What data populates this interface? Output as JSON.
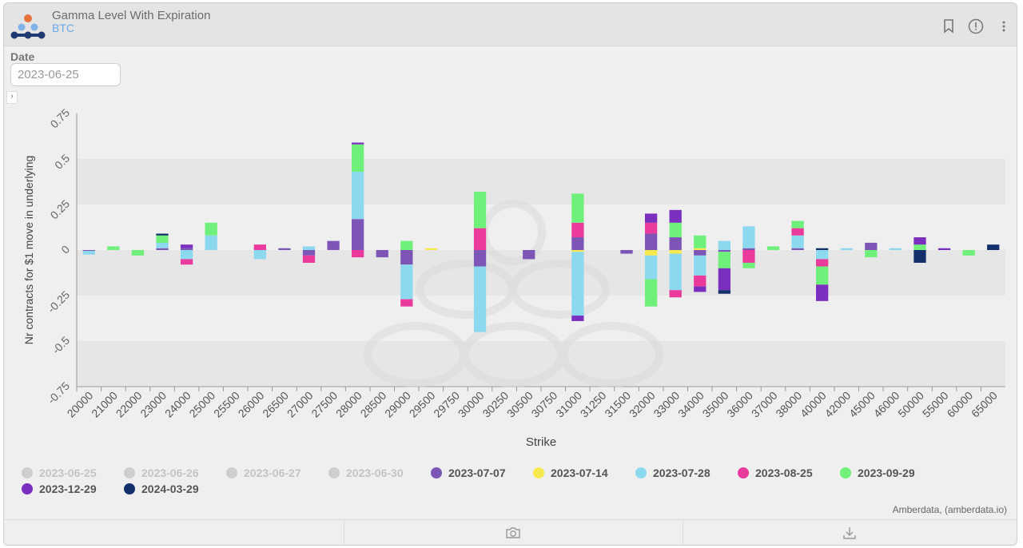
{
  "header": {
    "title": "Gamma Level With Expiration",
    "subtitle": "BTC",
    "bookmark_icon": "bookmark-icon",
    "info_icon": "exclamation-circle-icon",
    "menu_icon": "more-vertical-icon"
  },
  "filter": {
    "date_label": "Date",
    "date_value": "2023-06-25"
  },
  "expander_glyph": "›",
  "credit": "Amberdata, (amberdata.io)",
  "footer": {
    "camera_icon": "camera-icon",
    "download_icon": "download-icon"
  },
  "colors": {
    "2023-07-07": "#7d55b7",
    "2023-07-14": "#f7e84e",
    "2023-07-28": "#8cd8ee",
    "2023-08-25": "#ea3b9c",
    "2023-09-29": "#6ef07a",
    "2023-12-29": "#7a2fbf",
    "2024-03-29": "#14306b",
    "inactive": "#cfcfcf"
  },
  "chart_data": {
    "type": "bar",
    "stacked": true,
    "xlabel": "Strike",
    "ylabel": "Nr contracts for $1 move in underlying",
    "ylim": [
      -0.75,
      0.75
    ],
    "yticks": [
      "0.75",
      "0.5",
      "0.25",
      "0",
      "-0.25",
      "-0.5",
      "-0.75"
    ],
    "ytick_values": [
      0.75,
      0.5,
      0.25,
      0,
      -0.25,
      -0.5,
      -0.75
    ],
    "categories": [
      "20000",
      "21000",
      "22000",
      "23000",
      "24000",
      "25000",
      "25500",
      "26000",
      "26500",
      "27000",
      "27500",
      "28000",
      "28500",
      "29000",
      "29500",
      "29750",
      "30000",
      "30250",
      "30500",
      "30750",
      "31000",
      "31250",
      "31500",
      "32000",
      "33000",
      "34000",
      "35000",
      "36000",
      "37000",
      "38000",
      "40000",
      "42000",
      "45000",
      "46000",
      "50000",
      "55000",
      "60000",
      "65000"
    ],
    "legend": [
      {
        "name": "2023-06-25",
        "active": false
      },
      {
        "name": "2023-06-26",
        "active": false
      },
      {
        "name": "2023-06-27",
        "active": false
      },
      {
        "name": "2023-06-30",
        "active": false
      },
      {
        "name": "2023-07-07",
        "active": true
      },
      {
        "name": "2023-07-14",
        "active": true
      },
      {
        "name": "2023-07-28",
        "active": true
      },
      {
        "name": "2023-08-25",
        "active": true
      },
      {
        "name": "2023-09-29",
        "active": true
      },
      {
        "name": "2023-12-29",
        "active": true
      },
      {
        "name": "2024-03-29",
        "active": true
      }
    ],
    "series": [
      {
        "name": "2023-07-07",
        "values": [
          -0.005,
          0,
          0,
          0.01,
          0.01,
          0,
          0,
          0,
          0.01,
          -0.03,
          0.05,
          0.17,
          -0.04,
          -0.08,
          0,
          0,
          -0.09,
          0,
          -0.05,
          0,
          0.07,
          0,
          -0.02,
          0.09,
          0.07,
          -0.03,
          -0.01,
          0.01,
          0,
          0.01,
          0,
          0,
          0.04,
          0,
          0,
          0,
          0,
          0
        ]
      },
      {
        "name": "2023-07-14",
        "values": [
          0,
          0,
          0,
          0,
          0,
          0,
          0,
          0,
          0,
          0,
          0,
          0,
          0,
          0,
          0.01,
          0,
          0,
          0,
          0,
          0,
          -0.01,
          0,
          0,
          -0.03,
          -0.02,
          0.01,
          0,
          0,
          0,
          0,
          0,
          0,
          0,
          0,
          0,
          0,
          0,
          0
        ]
      },
      {
        "name": "2023-07-28",
        "values": [
          -0.02,
          0,
          0,
          0.03,
          -0.05,
          0.08,
          0,
          -0.05,
          0,
          0.02,
          0,
          0.26,
          0,
          -0.19,
          0,
          0,
          -0.36,
          0,
          0,
          0,
          -0.35,
          0,
          0,
          -0.13,
          -0.2,
          -0.11,
          0.05,
          0.12,
          0,
          0.07,
          -0.05,
          0.01,
          0,
          0.01,
          0,
          0,
          0,
          0
        ]
      },
      {
        "name": "2023-08-25",
        "values": [
          0,
          0,
          0,
          0,
          -0.03,
          0,
          0,
          0.03,
          0,
          -0.04,
          0,
          -0.04,
          0,
          -0.04,
          0,
          0,
          0.12,
          0,
          0,
          0,
          0.08,
          0,
          0,
          0.06,
          -0.04,
          -0.06,
          0,
          -0.07,
          0,
          0.04,
          -0.04,
          0,
          0,
          0,
          0,
          0,
          0,
          0
        ]
      },
      {
        "name": "2023-09-29",
        "values": [
          0,
          0.02,
          -0.03,
          0.04,
          0,
          0.07,
          0,
          0,
          0,
          0,
          0,
          0.15,
          0,
          0.05,
          0,
          0,
          0.2,
          0,
          0,
          0,
          0.16,
          0,
          0,
          -0.15,
          0.08,
          0.07,
          -0.09,
          -0.03,
          0.02,
          0.04,
          -0.1,
          0,
          -0.04,
          0,
          0.03,
          0,
          -0.03,
          0
        ]
      },
      {
        "name": "2023-12-29",
        "values": [
          0,
          0,
          0,
          0,
          0.02,
          0,
          0,
          0,
          0,
          0,
          0,
          0.01,
          0,
          0,
          0,
          0,
          0,
          0,
          0,
          0,
          -0.03,
          0,
          0,
          0.05,
          0.07,
          -0.03,
          -0.12,
          0,
          0,
          0,
          -0.09,
          0,
          0,
          0,
          0.04,
          0.01,
          0,
          0
        ]
      },
      {
        "name": "2024-03-29",
        "values": [
          0,
          0,
          0,
          0.01,
          0,
          0,
          0,
          0,
          0,
          0,
          0,
          0,
          0,
          0,
          0,
          0,
          0,
          0,
          0,
          0,
          0,
          0,
          0,
          0,
          0,
          0,
          -0.02,
          0,
          0,
          0,
          0.01,
          0,
          0,
          0,
          -0.07,
          0,
          0,
          0.03
        ]
      }
    ]
  }
}
